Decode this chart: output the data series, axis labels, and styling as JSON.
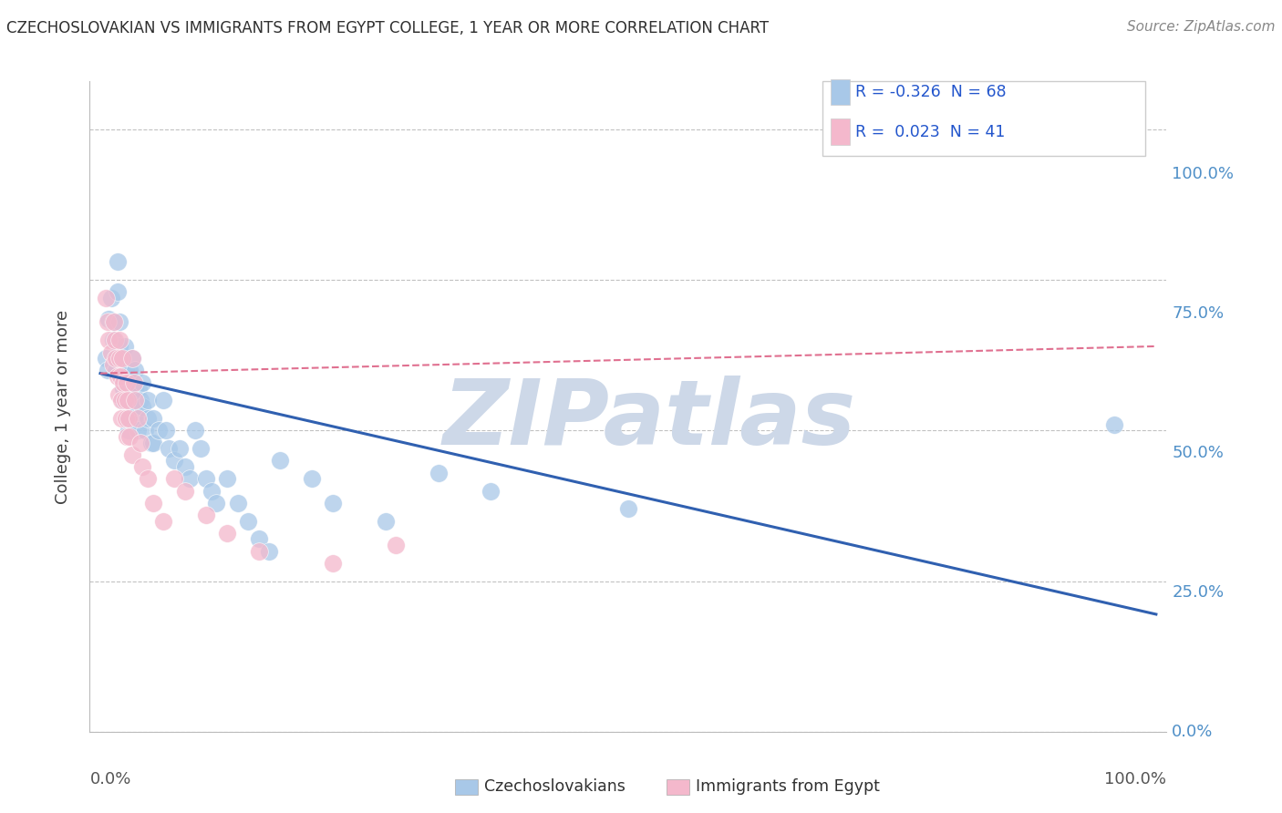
{
  "title": "CZECHOSLOVAKIAN VS IMMIGRANTS FROM EGYPT COLLEGE, 1 YEAR OR MORE CORRELATION CHART",
  "source": "Source: ZipAtlas.com",
  "ylabel": "College, 1 year or more",
  "legend_entries": [
    {
      "label": "Czechoslovakians",
      "R": -0.326,
      "N": 68
    },
    {
      "label": "Immigrants from Egypt",
      "R": 0.023,
      "N": 41
    }
  ],
  "blue_color": "#a8c8e8",
  "blue_edge_color": "#a8c8e8",
  "pink_color": "#f4b8cc",
  "pink_edge_color": "#f4b8cc",
  "blue_line_color": "#3060b0",
  "pink_line_color": "#e07090",
  "background_color": "#ffffff",
  "grid_color": "#bbbbbb",
  "title_color": "#303030",
  "right_tick_color": "#5090c8",
  "blue_scatter": [
    [
      0.005,
      0.62
    ],
    [
      0.007,
      0.6
    ],
    [
      0.008,
      0.685
    ],
    [
      0.01,
      0.72
    ],
    [
      0.012,
      0.68
    ],
    [
      0.012,
      0.65
    ],
    [
      0.014,
      0.62
    ],
    [
      0.015,
      0.6
    ],
    [
      0.016,
      0.78
    ],
    [
      0.016,
      0.73
    ],
    [
      0.018,
      0.68
    ],
    [
      0.018,
      0.64
    ],
    [
      0.02,
      0.62
    ],
    [
      0.021,
      0.59
    ],
    [
      0.022,
      0.57
    ],
    [
      0.022,
      0.55
    ],
    [
      0.023,
      0.64
    ],
    [
      0.024,
      0.6
    ],
    [
      0.025,
      0.57
    ],
    [
      0.025,
      0.55
    ],
    [
      0.026,
      0.52
    ],
    [
      0.027,
      0.5
    ],
    [
      0.028,
      0.6
    ],
    [
      0.028,
      0.57
    ],
    [
      0.03,
      0.62
    ],
    [
      0.03,
      0.58
    ],
    [
      0.03,
      0.55
    ],
    [
      0.032,
      0.52
    ],
    [
      0.033,
      0.6
    ],
    [
      0.033,
      0.57
    ],
    [
      0.035,
      0.54
    ],
    [
      0.035,
      0.5
    ],
    [
      0.036,
      0.57
    ],
    [
      0.038,
      0.55
    ],
    [
      0.04,
      0.58
    ],
    [
      0.04,
      0.54
    ],
    [
      0.042,
      0.5
    ],
    [
      0.045,
      0.55
    ],
    [
      0.045,
      0.52
    ],
    [
      0.048,
      0.48
    ],
    [
      0.05,
      0.52
    ],
    [
      0.05,
      0.48
    ],
    [
      0.055,
      0.5
    ],
    [
      0.06,
      0.55
    ],
    [
      0.062,
      0.5
    ],
    [
      0.065,
      0.47
    ],
    [
      0.07,
      0.45
    ],
    [
      0.075,
      0.47
    ],
    [
      0.08,
      0.44
    ],
    [
      0.085,
      0.42
    ],
    [
      0.09,
      0.5
    ],
    [
      0.095,
      0.47
    ],
    [
      0.1,
      0.42
    ],
    [
      0.105,
      0.4
    ],
    [
      0.11,
      0.38
    ],
    [
      0.12,
      0.42
    ],
    [
      0.13,
      0.38
    ],
    [
      0.14,
      0.35
    ],
    [
      0.15,
      0.32
    ],
    [
      0.16,
      0.3
    ],
    [
      0.17,
      0.45
    ],
    [
      0.2,
      0.42
    ],
    [
      0.22,
      0.38
    ],
    [
      0.27,
      0.35
    ],
    [
      0.32,
      0.43
    ],
    [
      0.37,
      0.4
    ],
    [
      0.5,
      0.37
    ],
    [
      0.96,
      0.51
    ]
  ],
  "pink_scatter": [
    [
      0.005,
      0.72
    ],
    [
      0.007,
      0.68
    ],
    [
      0.008,
      0.65
    ],
    [
      0.01,
      0.63
    ],
    [
      0.012,
      0.61
    ],
    [
      0.013,
      0.68
    ],
    [
      0.014,
      0.65
    ],
    [
      0.015,
      0.62
    ],
    [
      0.016,
      0.59
    ],
    [
      0.017,
      0.56
    ],
    [
      0.018,
      0.65
    ],
    [
      0.018,
      0.62
    ],
    [
      0.019,
      0.59
    ],
    [
      0.02,
      0.55
    ],
    [
      0.02,
      0.52
    ],
    [
      0.021,
      0.62
    ],
    [
      0.022,
      0.58
    ],
    [
      0.023,
      0.55
    ],
    [
      0.024,
      0.52
    ],
    [
      0.025,
      0.49
    ],
    [
      0.025,
      0.58
    ],
    [
      0.026,
      0.55
    ],
    [
      0.027,
      0.52
    ],
    [
      0.028,
      0.49
    ],
    [
      0.03,
      0.46
    ],
    [
      0.03,
      0.62
    ],
    [
      0.032,
      0.58
    ],
    [
      0.033,
      0.55
    ],
    [
      0.035,
      0.52
    ],
    [
      0.038,
      0.48
    ],
    [
      0.04,
      0.44
    ],
    [
      0.045,
      0.42
    ],
    [
      0.05,
      0.38
    ],
    [
      0.06,
      0.35
    ],
    [
      0.07,
      0.42
    ],
    [
      0.08,
      0.4
    ],
    [
      0.1,
      0.36
    ],
    [
      0.12,
      0.33
    ],
    [
      0.15,
      0.3
    ],
    [
      0.22,
      0.28
    ],
    [
      0.28,
      0.31
    ]
  ],
  "blue_line": {
    "x0": 0.0,
    "x1": 1.0,
    "y0": 0.595,
    "y1": 0.195
  },
  "pink_line": {
    "x0": 0.0,
    "x1": 1.0,
    "y0": 0.595,
    "y1": 0.64
  },
  "ylim": [
    0.0,
    1.08
  ],
  "xlim": [
    -0.01,
    1.01
  ],
  "watermark_color": "#cdd8e8"
}
